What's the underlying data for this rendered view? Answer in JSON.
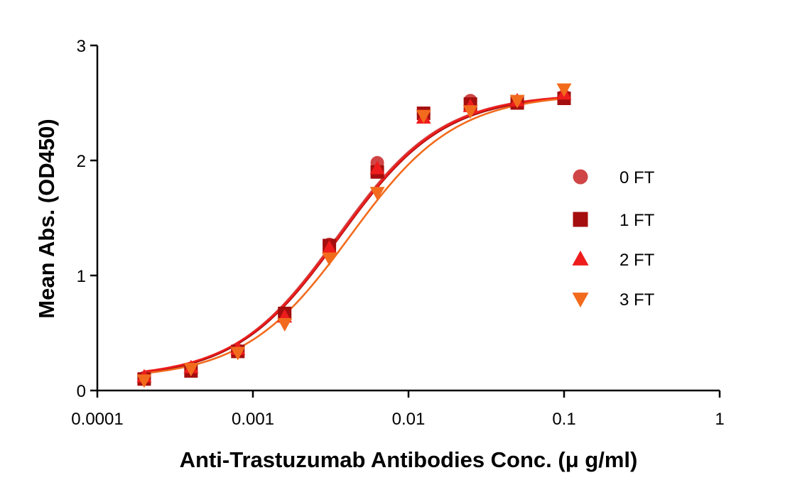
{
  "chart_data": {
    "type": "scatter",
    "xscale": "log",
    "xlim": [
      0.0001,
      1
    ],
    "ylim": [
      0,
      3
    ],
    "xticks": [
      "0.0001",
      "0.001",
      "0.01",
      "0.1",
      "1"
    ],
    "yticks": [
      "0",
      "1",
      "2",
      "3"
    ],
    "xlabel": "Anti-Trastuzumab Antibodies Conc. (μ g/ml)",
    "ylabel": "Mean Abs. (OD450)",
    "x": [
      0.0002,
      0.0004,
      0.0008,
      0.0016,
      0.0031,
      0.0063,
      0.0125,
      0.025,
      0.05,
      0.1
    ],
    "legend_position": "right",
    "fit": "sigmoidal 4PL curve per series",
    "series": [
      {
        "name": "0 FT",
        "marker": "circle",
        "color": "#D04545",
        "values": [
          0.11,
          0.18,
          0.35,
          0.66,
          1.27,
          1.98,
          2.4,
          2.52,
          2.51,
          2.56
        ],
        "fit": {
          "bottom": 0.1,
          "top": 2.58,
          "ec50": 0.0035,
          "hill": 1.3
        }
      },
      {
        "name": "1 FT",
        "marker": "square",
        "color": "#A50E0E",
        "values": [
          0.1,
          0.17,
          0.34,
          0.67,
          1.26,
          1.9,
          2.41,
          2.49,
          2.5,
          2.54
        ],
        "fit": {
          "bottom": 0.1,
          "top": 2.57,
          "ec50": 0.0036,
          "hill": 1.3
        }
      },
      {
        "name": "2 FT",
        "marker": "triangle-up",
        "color": "#EE1C1C",
        "values": [
          0.12,
          0.2,
          0.36,
          0.64,
          1.24,
          1.93,
          2.37,
          2.47,
          2.52,
          2.58
        ],
        "fit": {
          "bottom": 0.11,
          "top": 2.58,
          "ec50": 0.0036,
          "hill": 1.3
        }
      },
      {
        "name": "3 FT",
        "marker": "triangle-down",
        "color": "#F26B1D",
        "values": [
          0.09,
          0.19,
          0.33,
          0.58,
          1.15,
          1.72,
          2.39,
          2.43,
          2.52,
          2.62
        ],
        "fit": {
          "bottom": 0.1,
          "top": 2.58,
          "ec50": 0.0042,
          "hill": 1.28
        }
      }
    ]
  }
}
